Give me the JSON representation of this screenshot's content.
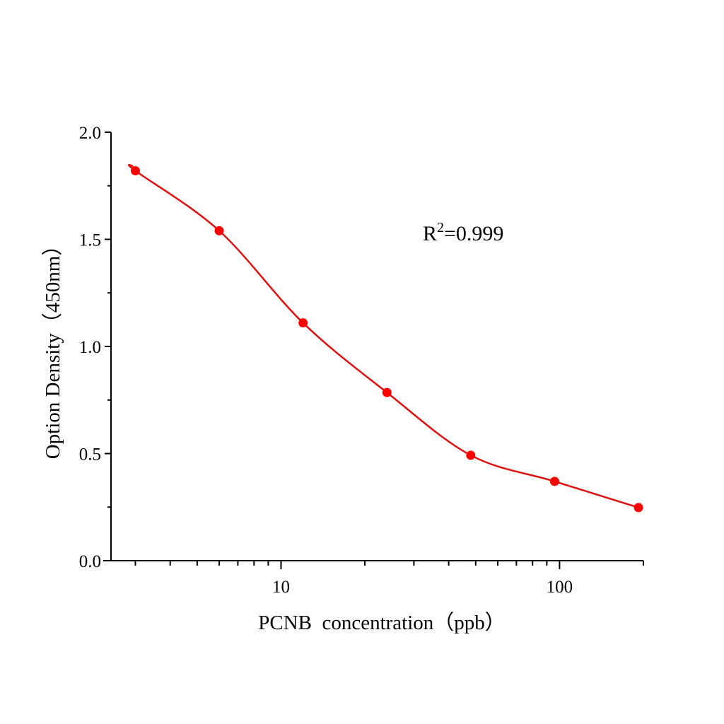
{
  "chart_data": {
    "type": "scatter",
    "title": "",
    "xlabel": "PCNB  concentration（ppb）",
    "ylabel": "Option Density（450nm）",
    "xscale": "log",
    "xlim": [
      2.3,
      200
    ],
    "ylim": [
      0,
      2.0
    ],
    "x_ticks": [
      10,
      100
    ],
    "x_tick_labels": [
      "10",
      "100"
    ],
    "y_ticks": [
      0,
      0.5,
      1.0,
      1.5,
      2.0
    ],
    "y_tick_labels": [
      "0.0",
      "0.5",
      "1.0",
      "1.5",
      "2.0"
    ],
    "grid": false,
    "annotation": {
      "base": "R",
      "sup": "2",
      "rest": "=0.999"
    },
    "series": [
      {
        "x": [
          3,
          6,
          12,
          24,
          48,
          96,
          192
        ],
        "y": [
          1.82,
          1.54,
          1.11,
          0.785,
          0.492,
          0.37,
          0.248
        ],
        "marker_color": "#ff0000",
        "line_color": "#dd1111",
        "fit": "smooth curve"
      }
    ]
  }
}
